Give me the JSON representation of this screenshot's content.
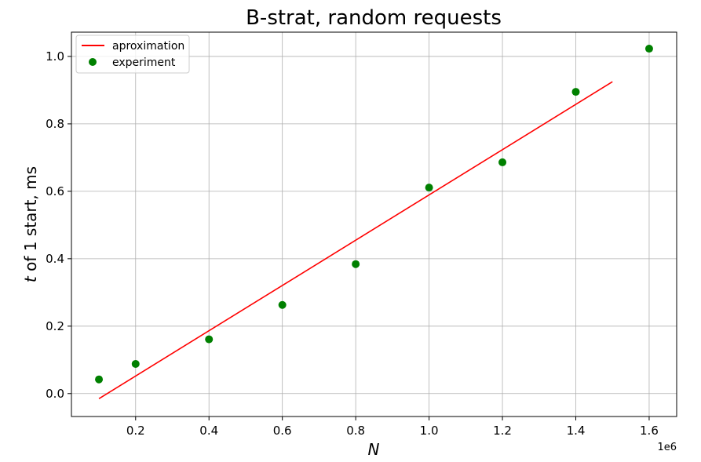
{
  "chart_data": {
    "type": "scatter",
    "title": "B-strat, random requests",
    "xlabel_italic": "N",
    "ylabel_italic": "t",
    "ylabel_rest": " of 1 start, ms",
    "x_offset_label": "1e6",
    "xlim": [
      0.025,
      1.675
    ],
    "ylim": [
      -0.068,
      1.072
    ],
    "x_ticks": [
      0.2,
      0.4,
      0.6,
      0.8,
      1.0,
      1.2,
      1.4,
      1.6
    ],
    "x_tick_labels": [
      "0.2",
      "0.4",
      "0.6",
      "0.8",
      "1.0",
      "1.2",
      "1.4",
      "1.6"
    ],
    "y_ticks": [
      0.0,
      0.2,
      0.4,
      0.6,
      0.8,
      1.0
    ],
    "y_tick_labels": [
      "0.0",
      "0.2",
      "0.4",
      "0.6",
      "0.8",
      "1.0"
    ],
    "grid": true,
    "legend_placement": "top-left",
    "series": [
      {
        "name": "aproximation",
        "kind": "line",
        "color": "#ff0000",
        "x": [
          0.1,
          1.5
        ],
        "y": [
          -0.015,
          0.925
        ]
      },
      {
        "name": "experiment",
        "kind": "scatter",
        "color": "#008000",
        "x": [
          0.1,
          0.2,
          0.4,
          0.6,
          0.8,
          1.0,
          1.2,
          1.4,
          1.6
        ],
        "y": [
          0.042,
          0.088,
          0.161,
          0.263,
          0.384,
          0.611,
          0.686,
          0.895,
          1.023
        ]
      }
    ]
  }
}
